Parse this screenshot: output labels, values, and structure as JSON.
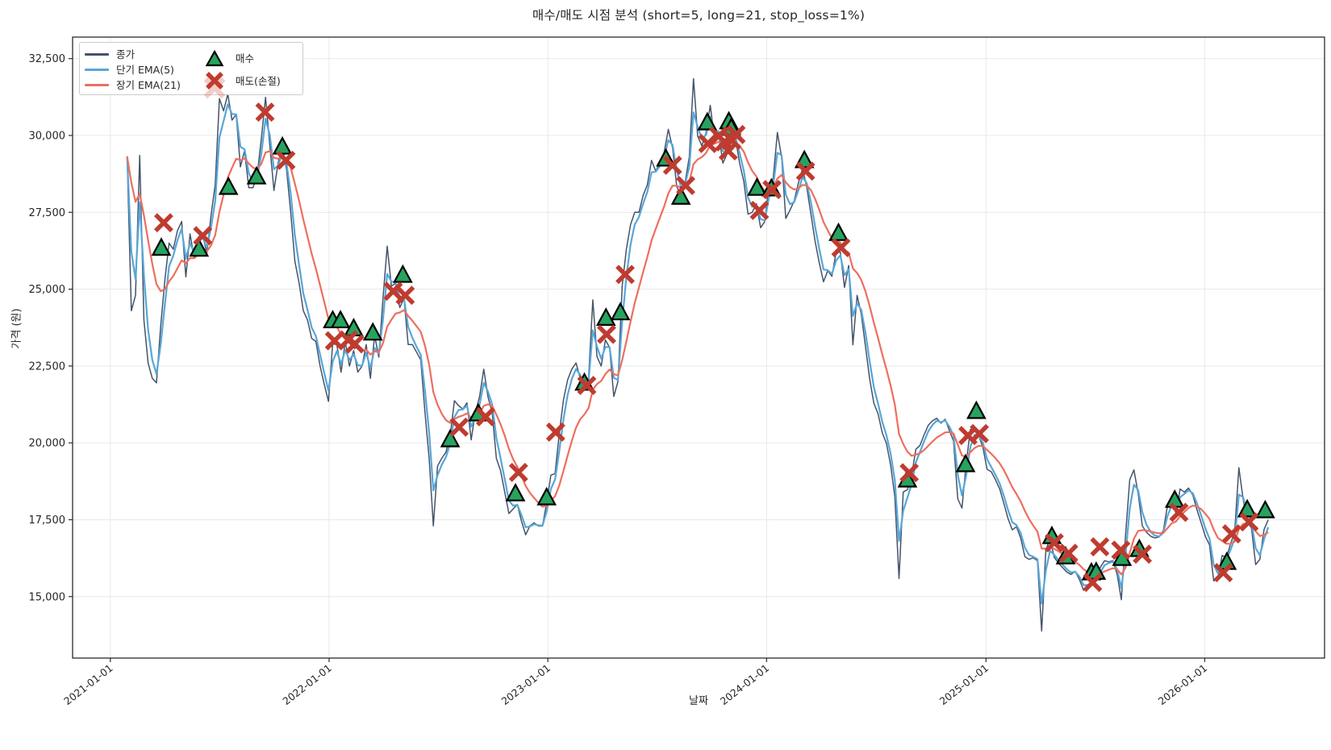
{
  "title": "매수/매도 시점 분석 (short=5, long=21, stop_loss=1%)",
  "axes": {
    "x_label": "날짜",
    "y_label": "가격 (원)",
    "x_tick_labels": [
      "2021-01-01",
      "2022-01-01",
      "2023-01-01",
      "2024-01-01",
      "2025-01-01",
      "2026-01-01"
    ],
    "y_tick_values": [
      15000,
      17500,
      20000,
      22500,
      25000,
      27500,
      30000,
      32500
    ],
    "xlim": [
      "2020-10-30",
      "2026-07-20"
    ],
    "ylim": [
      13000,
      33200
    ],
    "grid": true
  },
  "legend": {
    "position": "upper left",
    "items": [
      {
        "label": "종가",
        "type": "line",
        "color_key": "close"
      },
      {
        "label": "단기 EMA(5)",
        "type": "line",
        "color_key": "ema_short"
      },
      {
        "label": "장기 EMA(21)",
        "type": "line",
        "color_key": "ema_long"
      },
      {
        "label": "매수",
        "type": "marker-triangle",
        "color_key": "buy"
      },
      {
        "label": "매도(손절)",
        "type": "marker-x",
        "color_key": "sell"
      }
    ]
  },
  "colors": {
    "close": "#44546a",
    "ema_short": "#58a6d8",
    "ema_long": "#ee6e5e",
    "buy": "#27a35f",
    "buy_edge": "#000000",
    "sell": "#bf3b2f",
    "sell_faded": "rgba(223,106,94,0.35)",
    "grid": "#e6e6e6",
    "spine": "#2b2b2b",
    "text": "#262626"
  },
  "chart_data": {
    "type": "line",
    "title": "매수/매도 시점 분석 (short=5, long=21, stop_loss=1%)",
    "xlabel": "날짜",
    "ylabel": "가격 (원)",
    "x_epoch": "2021-01-01",
    "series_start_date": "2021-01-29",
    "series_step_days": 7,
    "ema_short_span": 5,
    "ema_long_span": 21,
    "close": [
      29320,
      24300,
      24800,
      29350,
      24000,
      22600,
      22100,
      21950,
      23800,
      25300,
      26500,
      26300,
      26900,
      27200,
      25400,
      26800,
      26000,
      26700,
      26800,
      26150,
      27400,
      28400,
      31200,
      30800,
      31350,
      30500,
      30680,
      28980,
      29500,
      28300,
      28300,
      28700,
      29900,
      31240,
      29700,
      28210,
      29110,
      29630,
      28900,
      27500,
      25900,
      25200,
      24300,
      24000,
      23400,
      23300,
      22500,
      21900,
      21350,
      23220,
      23200,
      22300,
      23300,
      22500,
      23000,
      22300,
      22500,
      23200,
      22100,
      23500,
      22790,
      24700,
      26400,
      25100,
      25190,
      24400,
      24700,
      23200,
      23200,
      22950,
      22700,
      21000,
      19500,
      17300,
      19250,
      19500,
      19700,
      20240,
      21370,
      21210,
      21100,
      21300,
      20100,
      21000,
      21500,
      22400,
      21500,
      21000,
      19500,
      19100,
      18400,
      17700,
      17850,
      18000,
      17450,
      17010,
      17300,
      17400,
      17300,
      17300,
      18050,
      18950,
      19000,
      20300,
      21400,
      22050,
      22400,
      22600,
      22100,
      21700,
      22140,
      24650,
      22800,
      22500,
      23350,
      23100,
      21510,
      22000,
      25100,
      26300,
      27100,
      27500,
      27500,
      28050,
      28400,
      29190,
      28840,
      29110,
      29450,
      30200,
      29600,
      28350,
      28000,
      28480,
      29300,
      31850,
      29980,
      29660,
      30100,
      30980,
      29900,
      30100,
      29100,
      29400,
      30400,
      29900,
      29100,
      28500,
      27440,
      27500,
      27780,
      27000,
      27200,
      28450,
      28600,
      30100,
      29300,
      27300,
      27570,
      27870,
      28450,
      28920,
      28320,
      27440,
      26550,
      25850,
      25240,
      25600,
      25420,
      26200,
      26210,
      25060,
      25770,
      23190,
      24800,
      24190,
      23140,
      22080,
      21290,
      20950,
      20330,
      19980,
      19280,
      18250,
      15590,
      18400,
      18480,
      18930,
      19790,
      19920,
      20270,
      20580,
      20720,
      20800,
      20640,
      20770,
      20400,
      20060,
      18180,
      17880,
      19320,
      20430,
      20510,
      20240,
      19850,
      19140,
      19060,
      18800,
      18500,
      18030,
      17530,
      17170,
      17270,
      16910,
      16300,
      16210,
      16260,
      16170,
      13880,
      16510,
      16880,
      16280,
      16090,
      15940,
      15800,
      15720,
      15820,
      15560,
      15200,
      15380,
      15400,
      15580,
      15950,
      16170,
      16130,
      16170,
      15720,
      14900,
      17000,
      18800,
      19120,
      18360,
      17300,
      17090,
      16960,
      16910,
      16940,
      17140,
      17960,
      18190,
      17700,
      18500,
      18400,
      18530,
      18310,
      17830,
      17400,
      16960,
      16680,
      15510,
      15590,
      16340,
      16260,
      16700,
      17130,
      19190,
      18180,
      17410,
      17240,
      16040,
      16210,
      17180,
      17500
    ],
    "buy_signals": [
      [
        "2021-03-27",
        26340
      ],
      [
        "2021-05-29",
        26310
      ],
      [
        "2021-07-17",
        28320
      ],
      [
        "2021-09-02",
        28660
      ],
      [
        "2021-10-15",
        29630
      ],
      [
        "2022-01-07",
        23980
      ],
      [
        "2022-01-20",
        23980
      ],
      [
        "2022-02-11",
        23720
      ],
      [
        "2022-03-15",
        23580
      ],
      [
        "2022-05-04",
        25460
      ],
      [
        "2022-07-22",
        20110
      ],
      [
        "2022-09-07",
        20950
      ],
      [
        "2022-11-08",
        18350
      ],
      [
        "2022-12-30",
        18220
      ],
      [
        "2023-03-03",
        21950
      ],
      [
        "2023-04-08",
        24060
      ],
      [
        "2023-05-02",
        24240
      ],
      [
        "2023-07-17",
        29240
      ],
      [
        "2023-08-11",
        28000
      ],
      [
        "2023-09-24",
        30420
      ],
      [
        "2023-10-30",
        30450
      ],
      [
        "2023-11-03",
        30240
      ],
      [
        "2023-12-16",
        28290
      ],
      [
        "2024-01-09",
        28270
      ],
      [
        "2024-03-04",
        29190
      ],
      [
        "2024-04-30",
        26820
      ],
      [
        "2024-08-23",
        18800
      ],
      [
        "2024-11-28",
        19300
      ],
      [
        "2024-12-16",
        21030
      ],
      [
        "2025-04-21",
        16960
      ],
      [
        "2025-05-14",
        16300
      ],
      [
        "2025-06-26",
        15780
      ],
      [
        "2025-07-04",
        15800
      ],
      [
        "2025-08-16",
        16250
      ],
      [
        "2025-09-14",
        16540
      ],
      [
        "2025-11-12",
        18140
      ],
      [
        "2026-02-07",
        16120
      ],
      [
        "2026-03-13",
        17830
      ],
      [
        "2026-04-12",
        17800
      ]
    ],
    "sell_signals": [
      [
        "2021-03-31",
        27160
      ],
      [
        "2021-06-04",
        26740
      ],
      [
        "2021-09-16",
        30760
      ],
      [
        "2021-10-21",
        29190
      ],
      [
        "2022-01-10",
        23320
      ],
      [
        "2022-02-02",
        23350
      ],
      [
        "2022-02-13",
        23220
      ],
      [
        "2022-04-18",
        24930
      ],
      [
        "2022-05-08",
        24800
      ],
      [
        "2022-08-06",
        20510
      ],
      [
        "2022-09-19",
        20850
      ],
      [
        "2022-11-13",
        19040
      ],
      [
        "2023-01-14",
        20350
      ],
      [
        "2023-03-07",
        21870
      ],
      [
        "2023-04-09",
        23530
      ],
      [
        "2023-05-10",
        25480
      ],
      [
        "2023-07-28",
        29030
      ],
      [
        "2023-08-19",
        28370
      ],
      [
        "2023-09-25",
        29740
      ],
      [
        "2023-10-13",
        29980
      ],
      [
        "2023-10-23",
        29790
      ],
      [
        "2023-10-29",
        29500
      ],
      [
        "2023-11-04",
        29840
      ],
      [
        "2023-11-11",
        30030
      ],
      [
        "2023-12-20",
        27560
      ],
      [
        "2024-01-10",
        28240
      ],
      [
        "2024-03-06",
        28840
      ],
      [
        "2024-05-04",
        26350
      ],
      [
        "2024-08-26",
        19030
      ],
      [
        "2024-12-02",
        20240
      ],
      [
        "2024-12-21",
        20300
      ],
      [
        "2025-04-25",
        16750
      ],
      [
        "2025-05-19",
        16410
      ],
      [
        "2025-06-28",
        15460
      ],
      [
        "2025-07-10",
        16620
      ],
      [
        "2025-08-14",
        16510
      ],
      [
        "2025-09-19",
        16380
      ],
      [
        "2025-11-19",
        17740
      ],
      [
        "2026-02-01",
        15780
      ],
      [
        "2026-02-15",
        17040
      ],
      [
        "2026-03-16",
        17430
      ]
    ]
  }
}
